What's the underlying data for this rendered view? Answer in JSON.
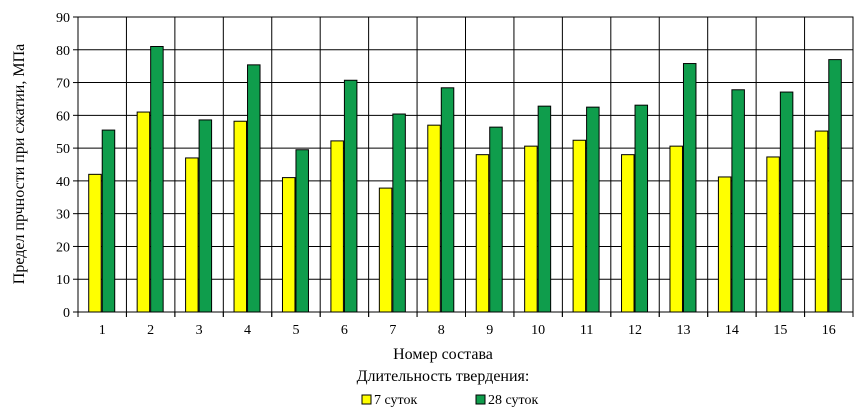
{
  "chart_data": {
    "type": "bar",
    "categories": [
      "1",
      "2",
      "3",
      "4",
      "5",
      "6",
      "7",
      "8",
      "9",
      "10",
      "11",
      "12",
      "13",
      "14",
      "15",
      "16"
    ],
    "series": [
      {
        "name": "7 суток",
        "color": "#ffff00",
        "values": [
          42,
          61,
          47,
          58.2,
          41,
          52.2,
          37.8,
          57,
          48,
          50.6,
          52.4,
          48,
          50.6,
          41.2,
          47.3,
          55.2
        ]
      },
      {
        "name": "28 суток",
        "color": "#0f9d4c",
        "values": [
          55.5,
          81,
          58.6,
          75.4,
          49.5,
          70.7,
          60.4,
          68.4,
          56.4,
          62.8,
          62.5,
          63.1,
          75.8,
          67.8,
          67.1,
          77
        ]
      }
    ],
    "ylim": [
      0,
      90
    ],
    "yticks": [
      0,
      10,
      20,
      30,
      40,
      50,
      60,
      70,
      80,
      90
    ],
    "ylabel": "Предел прчности при сжатии, МПа",
    "xlabel": "Номер состава",
    "legend_title": "Длительность твердения:",
    "legend_position": "bottom",
    "grid": true
  }
}
